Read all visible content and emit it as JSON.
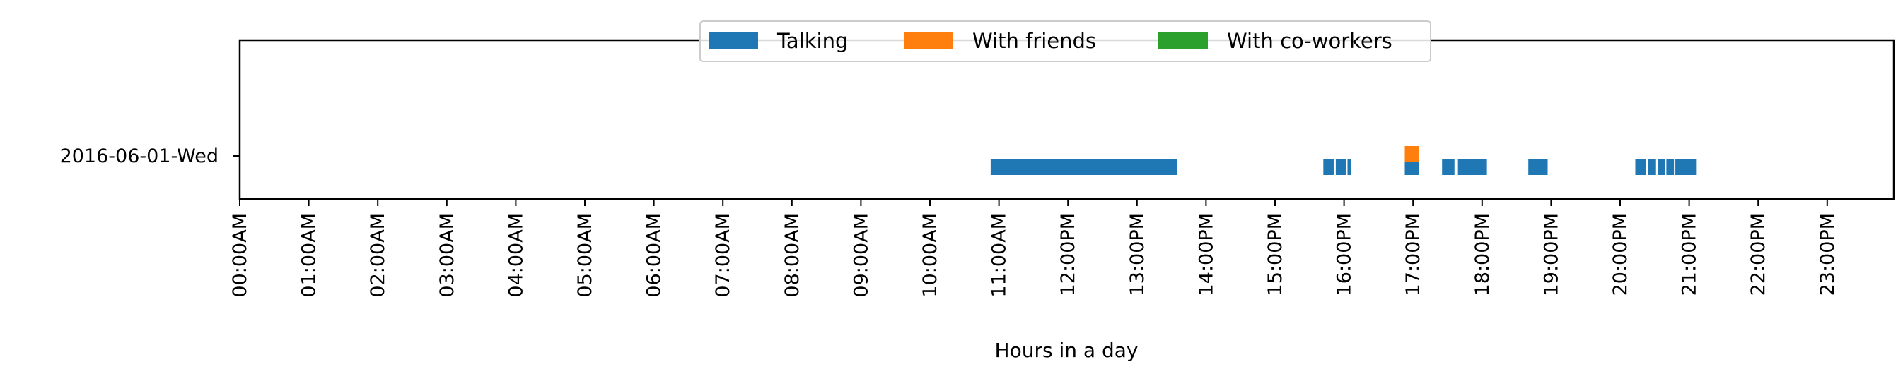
{
  "chart_data": {
    "type": "timeline",
    "xlabel": "Hours in a day",
    "xlim_hours": [
      0,
      24
    ],
    "row_label": "2016-06-01-Wed",
    "x_tick_labels": [
      "00:00AM",
      "01:00AM",
      "02:00AM",
      "03:00AM",
      "04:00AM",
      "05:00AM",
      "06:00AM",
      "07:00AM",
      "08:00AM",
      "09:00AM",
      "10:00AM",
      "11:00AM",
      "12:00PM",
      "13:00PM",
      "14:00PM",
      "15:00PM",
      "16:00PM",
      "17:00PM",
      "18:00PM",
      "19:00PM",
      "20:00PM",
      "21:00PM",
      "22:00PM",
      "23:00PM"
    ],
    "legend_position": "top-center",
    "series": [
      {
        "name": "Talking",
        "color": "#1f77b4",
        "intervals": [
          [
            10.88,
            13.58
          ],
          [
            15.7,
            15.85
          ],
          [
            15.88,
            16.03
          ],
          [
            16.05,
            16.1
          ],
          [
            16.88,
            17.08
          ],
          [
            17.42,
            17.6
          ],
          [
            17.65,
            18.07
          ],
          [
            18.67,
            18.95
          ],
          [
            20.22,
            20.37
          ],
          [
            20.4,
            20.52
          ],
          [
            20.55,
            20.65
          ],
          [
            20.67,
            20.78
          ],
          [
            20.8,
            21.1
          ]
        ]
      },
      {
        "name": "With friends",
        "color": "#ff7f0e",
        "intervals": [
          [
            16.88,
            17.08
          ]
        ]
      },
      {
        "name": "With co-workers",
        "color": "#2ca02c",
        "intervals": []
      }
    ]
  }
}
